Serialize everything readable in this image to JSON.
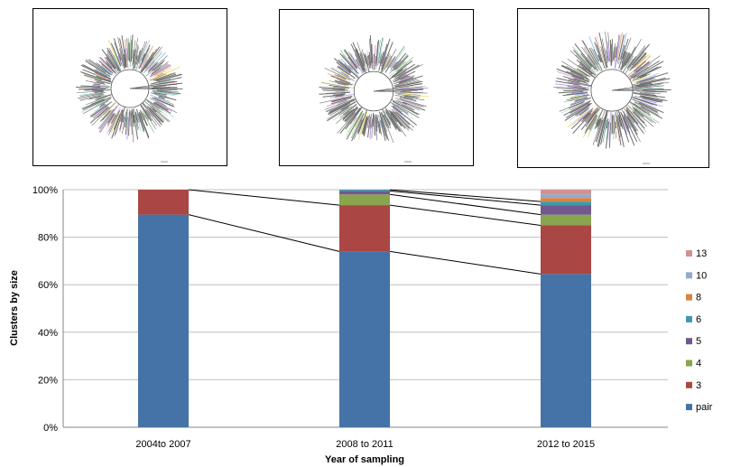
{
  "tree_panels": [
    {
      "id": "tree-2004-2007",
      "name": "phylogenetic-tree-2004-2007"
    },
    {
      "id": "tree-2008-2011",
      "name": "phylogenetic-tree-2008-2011"
    },
    {
      "id": "tree-2012-2015",
      "name": "phylogenetic-tree-2012-2015"
    }
  ],
  "chart_data": {
    "type": "bar",
    "stacked": true,
    "percent": true,
    "categories": [
      "2004to 2007",
      "2008 to 2011",
      "2012 to 2015"
    ],
    "series": [
      {
        "name": "pair",
        "color": "#4572A7",
        "values": [
          89.5,
          74.0,
          64.5
        ]
      },
      {
        "name": "3",
        "color": "#AA4643",
        "values": [
          10.5,
          19.5,
          20.5
        ]
      },
      {
        "name": "4",
        "color": "#89A54E",
        "values": [
          0,
          4.5,
          4.5
        ]
      },
      {
        "name": "5",
        "color": "#71588F",
        "values": [
          0,
          1.5,
          4.0
        ]
      },
      {
        "name": "6",
        "color": "#4198AF",
        "values": [
          0,
          0.5,
          1.5
        ]
      },
      {
        "name": "8",
        "color": "#DB843D",
        "values": [
          0,
          0,
          1.5
        ]
      },
      {
        "name": "10",
        "color": "#93A9CF",
        "values": [
          0,
          0,
          1.5
        ]
      },
      {
        "name": "13",
        "color": "#D19392",
        "values": [
          0,
          0,
          2.0
        ]
      }
    ],
    "xlabel": "Year of sampling",
    "ylabel": "Clusters by size",
    "ylim": [
      0,
      100
    ],
    "yticks": [
      "0%",
      "20%",
      "40%",
      "60%",
      "80%",
      "100%"
    ],
    "grid": true,
    "legend_position": "right",
    "connector_lines": true
  }
}
